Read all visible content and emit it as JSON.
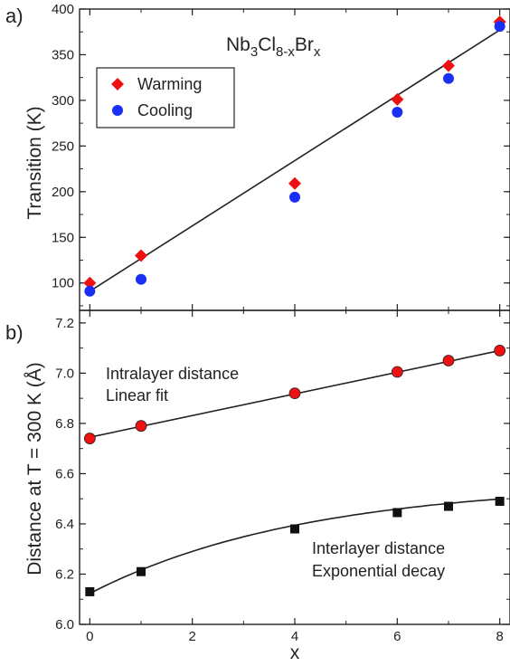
{
  "chart_data": [
    {
      "panel_label": "a)",
      "type": "scatter",
      "annotation": {
        "base1": "Nb",
        "sub1": "3",
        "base2": "Cl",
        "sub2": "8-x",
        "base3": "Br",
        "sub3": "x"
      },
      "ylabel": "Transition (K)",
      "ylim": [
        70,
        400
      ],
      "yticks": [
        100,
        150,
        200,
        250,
        300,
        350,
        400
      ],
      "xlim": [
        -0.2,
        8.2
      ],
      "xticks": [
        0,
        2,
        4,
        6,
        8
      ],
      "legend": {
        "placement": "top-left"
      },
      "series": [
        {
          "name": "Warming",
          "marker": "diamond",
          "color": "#ee1111",
          "x": [
            0,
            1,
            4,
            6,
            7,
            8
          ],
          "y": [
            100,
            130,
            209,
            301,
            338,
            386
          ]
        },
        {
          "name": "Cooling",
          "marker": "circle",
          "color": "#1a2ff5",
          "x": [
            0,
            1,
            4,
            6,
            7,
            8
          ],
          "y": [
            91,
            104,
            194,
            287,
            324,
            381
          ]
        }
      ],
      "fit_line": {
        "x": [
          0,
          8
        ],
        "y": [
          91,
          377
        ]
      }
    },
    {
      "panel_label": "b)",
      "type": "scatter",
      "ylabel": "Distance at T = 300 K (Å)",
      "xlabel": "x",
      "ylim": [
        6.0,
        7.25
      ],
      "yticks": [
        "6.0",
        "6.2",
        "6.4",
        "6.6",
        "6.8",
        "7.0",
        "7.2"
      ],
      "xlim": [
        -0.2,
        8.2
      ],
      "xticks": [
        0,
        2,
        4,
        6,
        8
      ],
      "series": [
        {
          "label_lines": [
            "Intralayer distance",
            "Linear fit"
          ],
          "marker": "circle",
          "color": "#ee1111",
          "x": [
            0,
            1,
            4,
            6,
            7,
            8
          ],
          "y": [
            6.74,
            6.79,
            6.92,
            7.005,
            7.05,
            7.09
          ]
        },
        {
          "label_lines": [
            "Interlayer distance",
            "Exponential decay"
          ],
          "marker": "square",
          "color": "#111111",
          "x": [
            0,
            1,
            4,
            6,
            7,
            8
          ],
          "y": [
            6.13,
            6.21,
            6.38,
            6.445,
            6.47,
            6.49
          ]
        }
      ],
      "fits": [
        {
          "kind": "linear",
          "x": [
            0,
            8
          ],
          "y": [
            6.745,
            7.09
          ]
        },
        {
          "kind": "exponential",
          "y0": 6.565,
          "A": -0.442,
          "t": 4.2
        }
      ]
    }
  ]
}
